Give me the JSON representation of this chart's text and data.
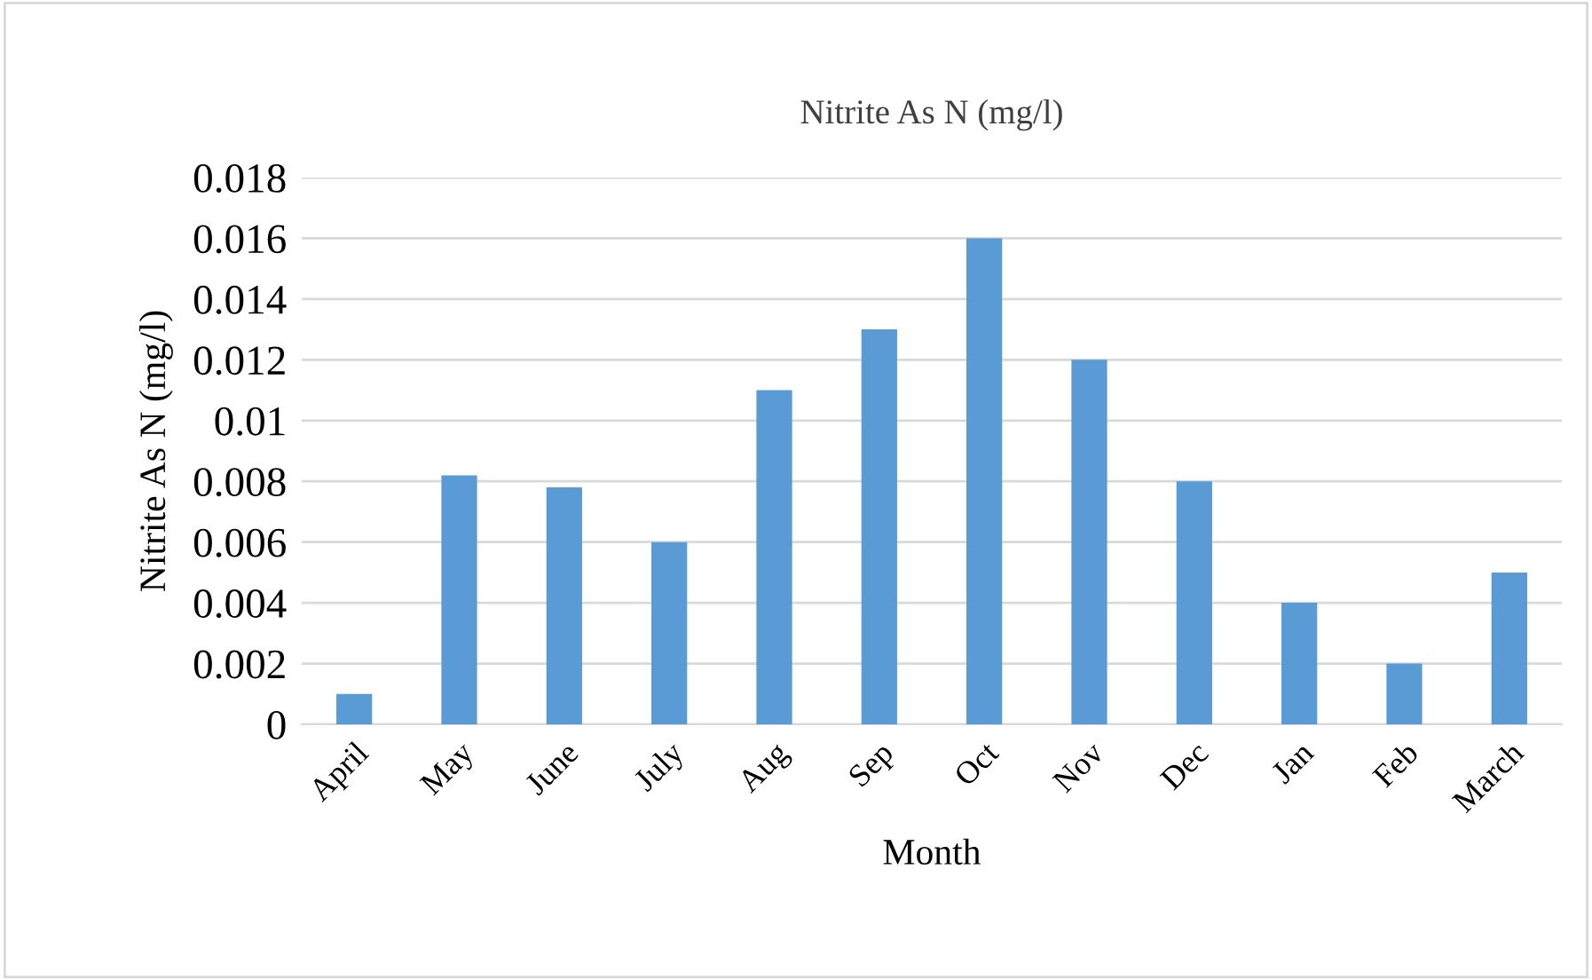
{
  "chart_data": {
    "type": "bar",
    "title": "Nitrite As N (mg/l)",
    "xlabel": "Month",
    "ylabel": "Nitrite As N (mg/l)",
    "categories": [
      "April",
      "May",
      "June",
      "July",
      "Aug",
      "Sep",
      "Oct",
      "Nov",
      "Dec",
      "Jan",
      "Feb",
      "March"
    ],
    "values": [
      0.001,
      0.0082,
      0.0078,
      0.006,
      0.011,
      0.013,
      0.016,
      0.012,
      0.008,
      0.004,
      0.002,
      0.005
    ],
    "color": "#5b9bd5",
    "ylim": [
      0,
      0.018
    ],
    "yticks": [
      0,
      0.002,
      0.004,
      0.006,
      0.008,
      0.01,
      0.012,
      0.014,
      0.016,
      0.018
    ],
    "grid": "y"
  }
}
